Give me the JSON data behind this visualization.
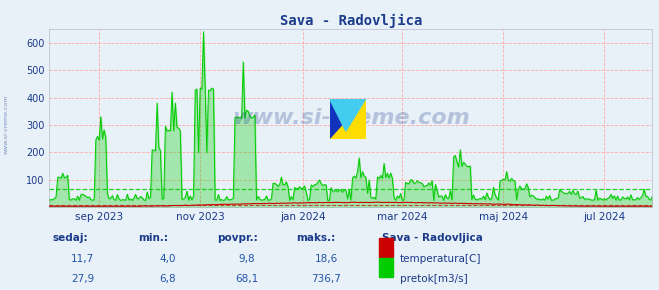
{
  "title": "Sava - Radovljica",
  "title_color": "#1a3a8a",
  "bg_color": "#e8f0f8",
  "plot_bg_color": "#e8f0f8",
  "grid_color_h": "#ffaaaa",
  "grid_color_v": "#ffaaaa",
  "ylim": [
    0,
    650
  ],
  "yticks": [
    100,
    200,
    300,
    400,
    500,
    600
  ],
  "temp_color": "#cc0000",
  "flow_color": "#00cc00",
  "x_tick_labels": [
    "sep 2023",
    "nov 2023",
    "jan 2024",
    "mar 2024",
    "maj 2024",
    "jul 2024"
  ],
  "x_tick_positions": [
    30,
    91,
    153,
    213,
    274,
    335
  ],
  "total_days": 365,
  "temp_stats": [
    11.7,
    4.0,
    9.8,
    18.6
  ],
  "flow_stats": [
    27.9,
    6.8,
    68.1,
    736.7
  ],
  "legend_items": [
    {
      "label": "temperatura[C]",
      "color": "#cc0000"
    },
    {
      "label": "pretok[m3/s]",
      "color": "#00cc00"
    }
  ],
  "bottom_headers": [
    "sedaj:",
    "min.:",
    "povpr.:",
    "maks.:"
  ],
  "station_label": "Sava - Radovljica",
  "watermark_text": "www.si-vreme.com",
  "sidebar_text": "www.si-vreme.com",
  "text_color": "#1a3a8a",
  "val_color": "#2255aa"
}
